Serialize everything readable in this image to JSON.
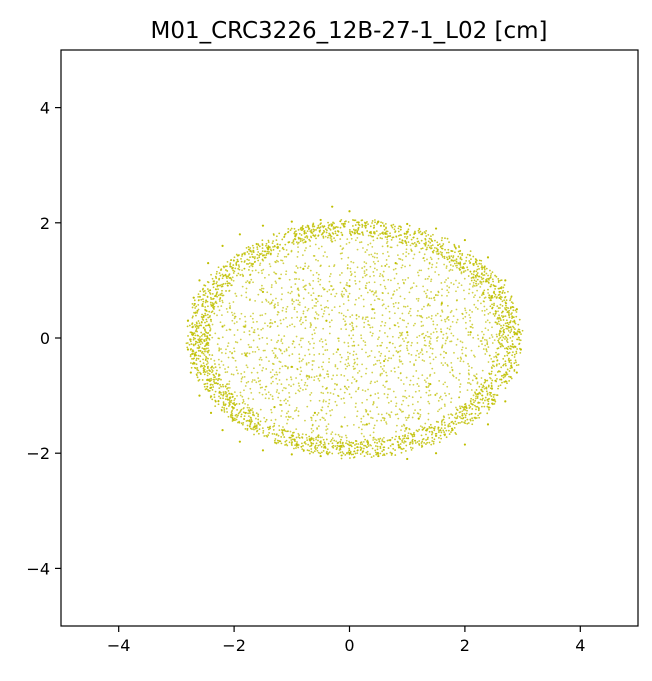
{
  "chart_data": {
    "type": "scatter",
    "title": "M01_CRC3226_12B-27-1_L02 [cm]",
    "xlabel": "",
    "ylabel": "",
    "xlim": [
      -5,
      5
    ],
    "ylim": [
      -5,
      5
    ],
    "xticks": [
      -4,
      -2,
      0,
      2,
      4
    ],
    "yticks": [
      -4,
      -2,
      0,
      2,
      4
    ],
    "xtick_labels": [
      "−4",
      "−2",
      "0",
      "2",
      "4"
    ],
    "ytick_labels": [
      "−4",
      "−2",
      "0",
      "2",
      "4"
    ],
    "grid": false,
    "legend": "none",
    "marker_color": "#bfbf00",
    "series": [
      {
        "points": [
          [
            -2.8,
            0.3
          ],
          [
            -2.8,
            -0.2
          ],
          [
            -2.75,
            -0.6
          ],
          [
            -2.7,
            0.7
          ],
          [
            -2.6,
            1.0
          ],
          [
            -2.6,
            -1.0
          ],
          [
            -2.45,
            1.3
          ],
          [
            -2.4,
            -1.3
          ],
          [
            -2.2,
            1.6
          ],
          [
            -2.2,
            -1.6
          ],
          [
            -1.9,
            1.8
          ],
          [
            -1.9,
            -1.8
          ],
          [
            -1.5,
            1.95
          ],
          [
            -1.5,
            -1.95
          ],
          [
            -1.0,
            2.02
          ],
          [
            -1.0,
            -2.02
          ],
          [
            -0.5,
            2.05
          ],
          [
            -0.5,
            -2.05
          ],
          [
            -0.3,
            2.28
          ],
          [
            0.0,
            2.2
          ],
          [
            0.0,
            -2.0
          ],
          [
            0.5,
            2.02
          ],
          [
            0.5,
            -2.05
          ],
          [
            1.0,
            1.98
          ],
          [
            1.0,
            -2.1
          ],
          [
            1.5,
            1.9
          ],
          [
            1.5,
            -2.0
          ],
          [
            2.0,
            1.7
          ],
          [
            2.0,
            -1.85
          ],
          [
            2.4,
            1.4
          ],
          [
            2.4,
            -1.5
          ],
          [
            2.7,
            1.0
          ],
          [
            2.7,
            -1.1
          ],
          [
            2.9,
            0.5
          ],
          [
            2.9,
            -0.6
          ],
          [
            2.97,
            -0.2
          ],
          [
            2.95,
            0.1
          ],
          [
            -1.5,
            0.8
          ],
          [
            -0.8,
            1.2
          ],
          [
            0.0,
            0.9
          ],
          [
            0.8,
            1.3
          ],
          [
            1.6,
            0.6
          ],
          [
            -1.8,
            -0.3
          ],
          [
            -1.0,
            -0.5
          ],
          [
            -0.2,
            -0.2
          ],
          [
            0.6,
            -0.4
          ],
          [
            1.4,
            -0.8
          ],
          [
            2.1,
            0.1
          ],
          [
            -0.6,
            -1.3
          ],
          [
            0.3,
            -1.5
          ],
          [
            1.2,
            -1.4
          ],
          [
            -1.3,
            -1.2
          ],
          [
            -2.2,
            0.2
          ],
          [
            -0.4,
            0.3
          ],
          [
            0.4,
            0.5
          ],
          [
            1.0,
            0.1
          ],
          [
            2.2,
            -0.7
          ]
        ]
      }
    ]
  }
}
